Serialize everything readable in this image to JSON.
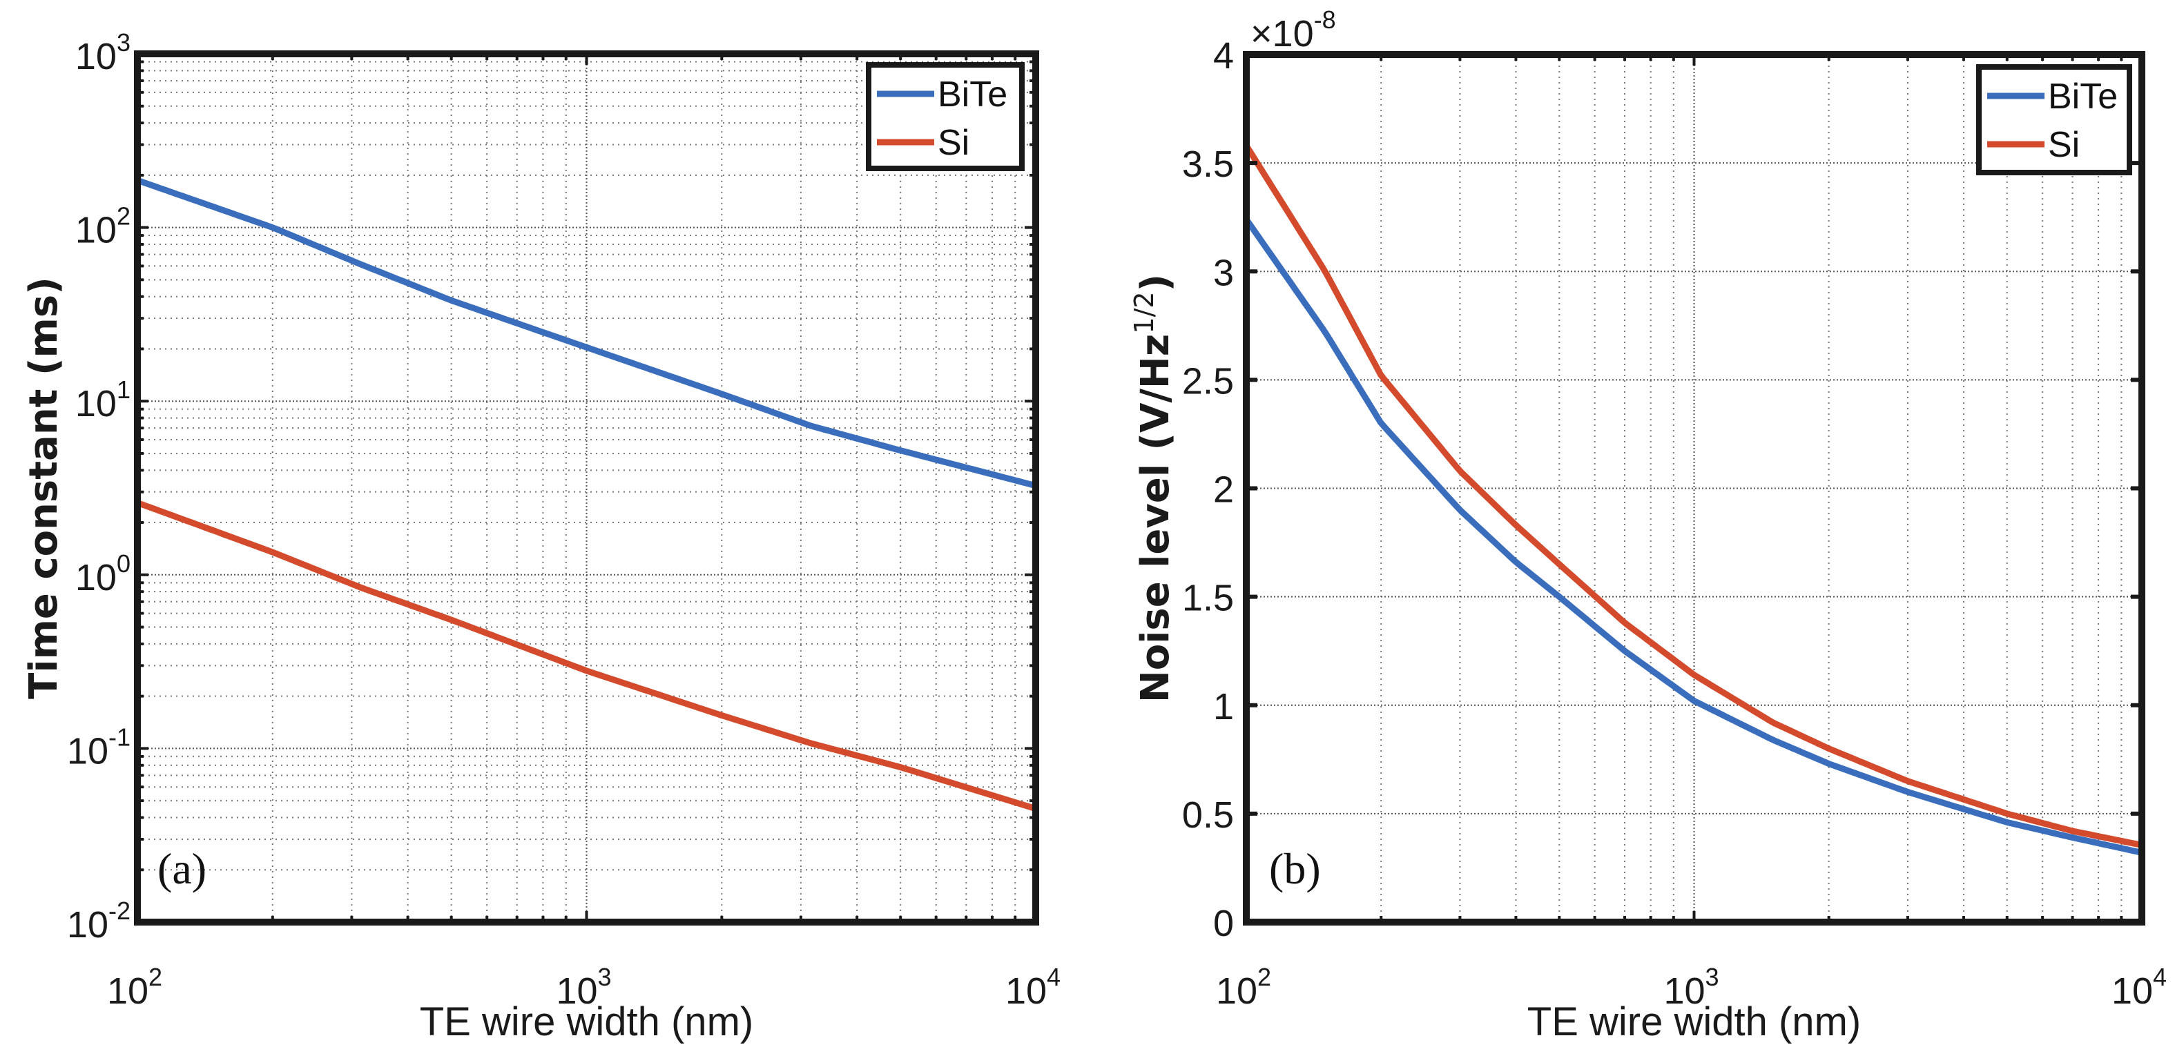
{
  "chart_data": [
    {
      "id": "a",
      "type": "line",
      "panel_label": "(a)",
      "title": "",
      "xlabel": "TE wire width (nm)",
      "ylabel": "Time constant (ms)",
      "xscale": "log",
      "yscale": "log",
      "xlim": [
        100,
        10000
      ],
      "ylim": [
        0.01,
        1000
      ],
      "grid": "major and minor (dotted)",
      "x_ticks": [
        {
          "base": "10",
          "exp": "2",
          "value": 100
        },
        {
          "base": "10",
          "exp": "3",
          "value": 1000
        },
        {
          "base": "10",
          "exp": "4",
          "value": 10000
        }
      ],
      "y_ticks": [
        {
          "base": "10",
          "exp": "-2",
          "value": 0.01
        },
        {
          "base": "10",
          "exp": "-1",
          "value": 0.1
        },
        {
          "base": "10",
          "exp": "0",
          "value": 1
        },
        {
          "base": "10",
          "exp": "1",
          "value": 10
        },
        {
          "base": "10",
          "exp": "2",
          "value": 100
        },
        {
          "base": "10",
          "exp": "3",
          "value": 1000
        }
      ],
      "legend": {
        "position": "top-right",
        "entries": [
          "BiTe",
          "Si"
        ]
      },
      "series": [
        {
          "name": "BiTe",
          "color": "#3a6ebd",
          "x": [
            100,
            200,
            316,
            500,
            1000,
            2000,
            3162,
            5000,
            10000
          ],
          "y": [
            187,
            100,
            61,
            38,
            20.4,
            11,
            7.2,
            5.2,
            3.26
          ]
        },
        {
          "name": "Si",
          "color": "#d44a2c",
          "x": [
            100,
            200,
            316,
            500,
            1000,
            2000,
            3162,
            5000,
            10000
          ],
          "y": [
            2.6,
            1.35,
            0.84,
            0.55,
            0.28,
            0.155,
            0.107,
            0.078,
            0.045
          ]
        }
      ]
    },
    {
      "id": "b",
      "type": "line",
      "panel_label": "(b)",
      "title": "",
      "xlabel": "TE wire width (nm)",
      "ylabel_main": "Noise level (V/Hz",
      "ylabel_sup": "1/2",
      "ylabel_close": ")",
      "y_multiplier_base": "×10",
      "y_multiplier_exp": "-8",
      "xscale": "log",
      "yscale": "linear",
      "xlim": [
        100,
        10000
      ],
      "ylim": [
        0,
        4
      ],
      "grid": "major (dotted), x minor (dotted)",
      "x_ticks": [
        {
          "base": "10",
          "exp": "2",
          "value": 100
        },
        {
          "base": "10",
          "exp": "3",
          "value": 1000
        },
        {
          "base": "10",
          "exp": "4",
          "value": 10000
        }
      ],
      "y_ticks": [
        "0",
        "0.5",
        "1",
        "1.5",
        "2",
        "2.5",
        "3",
        "3.5",
        "4"
      ],
      "legend": {
        "position": "top-right",
        "entries": [
          "BiTe",
          "Si"
        ]
      },
      "series": [
        {
          "name": "BiTe",
          "color": "#3a6ebd",
          "x": [
            100,
            150,
            200,
            300,
            400,
            500,
            700,
            1000,
            1500,
            2000,
            3000,
            5000,
            7000,
            10000
          ],
          "y": [
            3.24,
            2.72,
            2.3,
            1.9,
            1.66,
            1.5,
            1.25,
            1.02,
            0.84,
            0.73,
            0.6,
            0.46,
            0.39,
            0.32
          ]
        },
        {
          "name": "Si",
          "color": "#d44a2c",
          "x": [
            100,
            150,
            200,
            300,
            400,
            500,
            700,
            1000,
            1500,
            2000,
            3000,
            5000,
            7000,
            10000
          ],
          "y": [
            3.58,
            3.0,
            2.52,
            2.08,
            1.83,
            1.65,
            1.38,
            1.14,
            0.92,
            0.8,
            0.65,
            0.5,
            0.42,
            0.355
          ]
        }
      ]
    }
  ]
}
